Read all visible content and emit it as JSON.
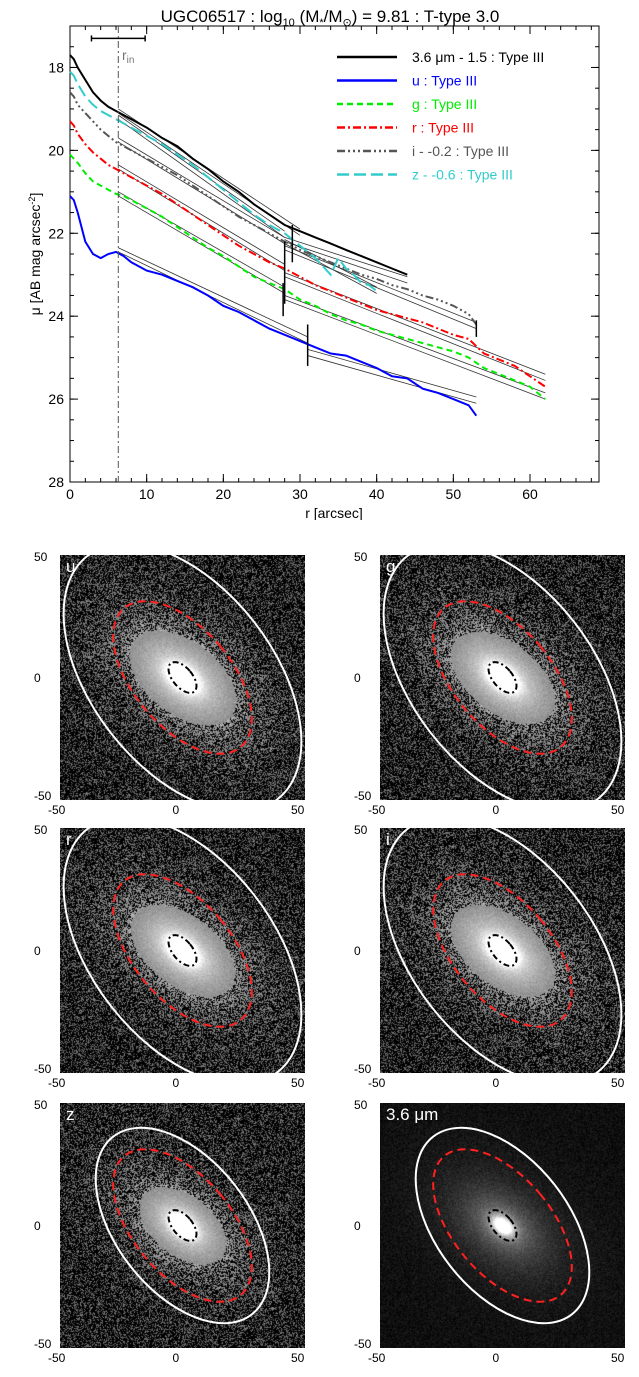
{
  "chart_data": [
    {
      "type": "line",
      "title": "UGC06517 : log",
      "title_sub": "10",
      "title_mid": " (M",
      "title_mstar": "*",
      "title_slash": "/M",
      "title_sun": "⊙",
      "title_end": ") = 9.81 : T-type 3.0",
      "xlabel": "r [arcsec]",
      "ylabel": "μ [AB mag arcsec",
      "ylabel_sup": "-2",
      "ylabel_end": "]",
      "xlim": [
        0,
        69
      ],
      "ylim": [
        28,
        17
      ],
      "xticks": [
        0,
        10,
        20,
        30,
        40,
        50,
        60
      ],
      "yticks": [
        18,
        20,
        22,
        24,
        26,
        28
      ],
      "r_in_label": "r",
      "r_in_sub": "in",
      "r_in": 6.3,
      "r_in_bar": [
        2.8,
        9.8
      ],
      "series": [
        {
          "name": "3.6 μm - 1.5 : Type III",
          "color": "#000000",
          "dash": "",
          "x": [
            0,
            0.5,
            1,
            2,
            3,
            4,
            5,
            6,
            7,
            8,
            10,
            12,
            14,
            16,
            18,
            20,
            22,
            24,
            26,
            28,
            30,
            32,
            34,
            36,
            38,
            40,
            42,
            44
          ],
          "y": [
            17.7,
            17.8,
            18.0,
            18.3,
            18.6,
            18.8,
            18.95,
            19.05,
            19.15,
            19.25,
            19.45,
            19.7,
            19.9,
            20.2,
            20.45,
            20.75,
            21.0,
            21.3,
            21.55,
            21.8,
            21.95,
            22.1,
            22.25,
            22.4,
            22.55,
            22.7,
            22.85,
            23.0
          ],
          "fits": [
            [
              [
                6.3,
                19.0
              ],
              [
                30,
                21.9
              ]
            ],
            [
              [
                6.3,
                19.1
              ],
              [
                30,
                22.05
              ]
            ],
            [
              [
                28,
                22.1
              ],
              [
                44,
                23.05
              ]
            ],
            [
              [
                28,
                22.2
              ],
              [
                44,
                23.2
              ]
            ]
          ]
        },
        {
          "name": "u : Type III",
          "color": "#0000ff",
          "dash": "",
          "x": [
            0,
            0.5,
            1,
            2,
            3,
            4,
            5,
            6,
            7,
            8,
            10,
            12,
            14,
            16,
            18,
            20,
            22,
            24,
            26,
            28,
            30,
            32,
            34,
            36,
            38,
            40,
            42,
            44,
            46,
            48,
            50,
            52,
            53
          ],
          "y": [
            21.1,
            21.2,
            21.5,
            22.2,
            22.5,
            22.6,
            22.5,
            22.45,
            22.55,
            22.7,
            22.9,
            23.0,
            23.15,
            23.3,
            23.5,
            23.75,
            23.9,
            24.1,
            24.3,
            24.45,
            24.6,
            24.75,
            24.9,
            24.95,
            25.1,
            25.25,
            25.45,
            25.5,
            25.75,
            25.85,
            26.0,
            26.15,
            26.4
          ],
          "fits": [
            [
              [
                6.3,
                22.35
              ],
              [
                31,
                24.5
              ]
            ],
            [
              [
                6.3,
                22.45
              ],
              [
                31,
                24.65
              ]
            ],
            [
              [
                31,
                24.8
              ],
              [
                53,
                25.95
              ]
            ],
            [
              [
                31,
                24.95
              ],
              [
                53,
                26.1
              ]
            ]
          ]
        },
        {
          "name": "g : Type III",
          "color": "#00ee00",
          "dash": "6,4",
          "x": [
            0,
            0.5,
            1,
            2,
            3,
            4,
            5,
            6,
            7,
            8,
            10,
            12,
            14,
            16,
            18,
            20,
            22,
            24,
            26,
            28,
            30,
            32,
            34,
            36,
            38,
            40,
            42,
            44,
            46,
            48,
            50,
            52,
            54,
            56,
            58,
            60,
            62
          ],
          "y": [
            20.1,
            20.2,
            20.3,
            20.55,
            20.75,
            20.85,
            20.95,
            21.05,
            21.1,
            21.2,
            21.4,
            21.6,
            21.85,
            22.1,
            22.35,
            22.55,
            22.8,
            23.05,
            23.2,
            23.35,
            23.6,
            23.75,
            23.95,
            24.1,
            24.2,
            24.35,
            24.45,
            24.55,
            24.65,
            24.75,
            24.85,
            25.0,
            25.25,
            25.4,
            25.55,
            25.7,
            26.0
          ],
          "fits": [
            [
              [
                6.3,
                21.0
              ],
              [
                28,
                23.3
              ]
            ],
            [
              [
                6.3,
                21.1
              ],
              [
                28,
                23.45
              ]
            ],
            [
              [
                28,
                23.5
              ],
              [
                62,
                25.85
              ]
            ],
            [
              [
                28,
                23.6
              ],
              [
                62,
                26.0
              ]
            ]
          ]
        },
        {
          "name": "r : Type III",
          "color": "#ff0000",
          "dash": "8,3,2,3",
          "x": [
            0,
            0.5,
            1,
            2,
            3,
            4,
            5,
            6,
            7,
            8,
            10,
            12,
            14,
            16,
            18,
            20,
            22,
            24,
            26,
            28,
            30,
            32,
            34,
            36,
            38,
            40,
            42,
            44,
            46,
            48,
            50,
            52,
            54,
            56,
            58,
            60,
            62
          ],
          "y": [
            19.3,
            19.4,
            19.6,
            19.85,
            20.05,
            20.2,
            20.35,
            20.45,
            20.55,
            20.65,
            20.85,
            21.05,
            21.3,
            21.55,
            21.8,
            22.05,
            22.3,
            22.5,
            22.7,
            22.85,
            23.05,
            23.25,
            23.4,
            23.55,
            23.7,
            23.85,
            23.95,
            24.05,
            24.15,
            24.3,
            24.45,
            24.55,
            24.9,
            25.05,
            25.2,
            25.45,
            25.7
          ],
          "fits": [
            [
              [
                6.3,
                20.35
              ],
              [
                28,
                22.75
              ]
            ],
            [
              [
                6.3,
                20.45
              ],
              [
                28,
                22.9
              ]
            ],
            [
              [
                28,
                22.95
              ],
              [
                62,
                25.4
              ]
            ],
            [
              [
                28,
                23.05
              ],
              [
                62,
                25.55
              ]
            ]
          ]
        },
        {
          "name": "i - -0.2 : Type III",
          "color": "#555555",
          "dash": "8,3,2,3,2,3,2,3",
          "x": [
            0,
            0.5,
            1,
            2,
            3,
            4,
            5,
            6,
            7,
            8,
            10,
            12,
            14,
            16,
            18,
            20,
            22,
            24,
            26,
            28,
            30,
            32,
            34,
            36,
            38,
            40,
            42,
            44,
            46,
            48,
            50,
            52,
            53
          ],
          "y": [
            18.6,
            18.7,
            18.9,
            19.1,
            19.3,
            19.5,
            19.65,
            19.8,
            19.9,
            20.0,
            20.2,
            20.4,
            20.6,
            20.85,
            21.1,
            21.35,
            21.6,
            21.8,
            22.0,
            22.2,
            22.4,
            22.55,
            22.7,
            22.85,
            23.0,
            23.1,
            23.25,
            23.35,
            23.5,
            23.6,
            23.75,
            23.95,
            24.2
          ],
          "fits": [
            [
              [
                6.3,
                19.7
              ],
              [
                28,
                22.1
              ]
            ],
            [
              [
                6.3,
                19.8
              ],
              [
                28,
                22.25
              ]
            ],
            [
              [
                28,
                22.3
              ],
              [
                53,
                24.15
              ]
            ],
            [
              [
                28,
                22.4
              ],
              [
                53,
                24.3
              ]
            ]
          ]
        },
        {
          "name": "z - -0.6 : Type III",
          "color": "#33cccc",
          "dash": "12,5",
          "x": [
            0,
            0.5,
            1,
            2,
            3,
            4,
            5,
            6,
            7,
            8,
            10,
            12,
            14,
            16,
            18,
            20,
            22,
            24,
            26,
            28,
            30,
            32,
            33,
            34,
            35,
            36,
            37,
            38,
            39,
            40
          ],
          "y": [
            18.1,
            18.2,
            18.4,
            18.7,
            18.9,
            19.05,
            19.15,
            19.25,
            19.35,
            19.45,
            19.65,
            19.85,
            20.1,
            20.35,
            20.65,
            20.95,
            21.25,
            21.55,
            21.8,
            22.0,
            22.3,
            22.6,
            22.8,
            23.0,
            22.6,
            22.85,
            23.0,
            23.2,
            23.25,
            23.4
          ],
          "fits": [
            [
              [
                6.3,
                19.15
              ],
              [
                28,
                21.95
              ]
            ],
            [
              [
                6.3,
                19.25
              ],
              [
                28,
                22.1
              ]
            ],
            [
              [
                28,
                22.15
              ],
              [
                40,
                23.3
              ]
            ],
            [
              [
                28,
                22.25
              ],
              [
                40,
                23.45
              ]
            ]
          ]
        }
      ],
      "breaks": [
        [
          29,
          21.8,
          22.7
        ],
        [
          27.8,
          23.2,
          24.0
        ],
        [
          31,
          24.2,
          25.2
        ],
        [
          28,
          22.2,
          23.7
        ],
        [
          53,
          24.1,
          24.5
        ]
      ]
    }
  ],
  "images": {
    "axis_ticks": [
      "-50",
      "0",
      "50"
    ],
    "panels": [
      {
        "label": "u",
        "disk": [
          47,
          80,
          -38,
          1.0
        ],
        "outer": [
          37,
          63,
          -38
        ],
        "brk": [
          20,
          37,
          -40
        ],
        "inner": [
          4,
          7.5,
          -40
        ],
        "white": true
      },
      {
        "label": "g",
        "disk": [
          45,
          78,
          -38,
          1.0
        ],
        "outer": [
          37,
          63,
          -38
        ],
        "brk": [
          20,
          37,
          -40
        ],
        "inner": [
          4,
          7.5,
          -40
        ],
        "white": true
      },
      {
        "label": "r",
        "disk": [
          45,
          78,
          -38,
          1.0
        ],
        "outer": [
          37,
          63,
          -38
        ],
        "brk": [
          20,
          37,
          -40
        ],
        "inner": [
          4,
          7.5,
          -40
        ],
        "white": true
      },
      {
        "label": "i",
        "disk": [
          45,
          78,
          -38,
          1.0
        ],
        "outer": [
          37,
          63,
          -38
        ],
        "brk": [
          20,
          37,
          -40
        ],
        "inner": [
          4,
          7.5,
          -40
        ],
        "white": true
      },
      {
        "label": "z",
        "disk": [
          42,
          70,
          -38,
          0.9
        ],
        "outer": [
          27,
          46,
          -38
        ],
        "brk": [
          20,
          37,
          -40
        ],
        "inner": [
          4,
          7.5,
          -40
        ],
        "white": true
      },
      {
        "label": "3.6 μm",
        "disk": [
          38,
          60,
          -38,
          0.8
        ],
        "outer": [
          27,
          46,
          -38
        ],
        "brk": [
          20,
          37,
          -40
        ],
        "inner": [
          4,
          7.5,
          -40
        ],
        "white": false
      }
    ]
  }
}
